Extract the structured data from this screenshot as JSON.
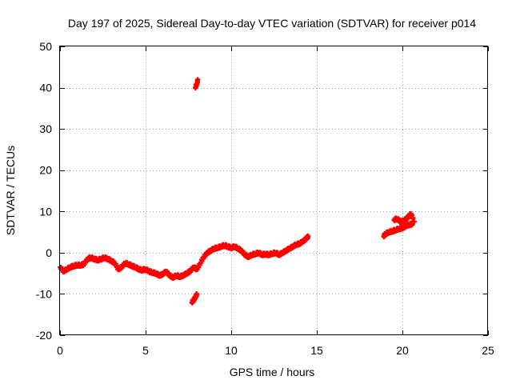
{
  "chart_data": {
    "type": "scatter",
    "title": "Day 197 of 2025, Sidereal Day-to-day VTEC variation (SDTVAR) for receiver p014",
    "xlabel": "GPS time / hours",
    "ylabel": "SDTVAR / TECUs",
    "xlim": [
      0,
      25
    ],
    "ylim": [
      -20,
      50
    ],
    "xticks": [
      0,
      5,
      10,
      15,
      20,
      25
    ],
    "yticks": [
      -20,
      -10,
      0,
      10,
      20,
      30,
      40,
      50
    ],
    "xtick_labels": [
      "0",
      "5",
      "10",
      "15",
      "20",
      "25"
    ],
    "ytick_labels": [
      "-20",
      "-10",
      "0",
      "10",
      "20",
      "30",
      "40",
      "50"
    ],
    "grid": true,
    "marker": "+",
    "marker_color": "#ff0000",
    "series": [
      {
        "x": [
          0.0,
          0.2,
          0.4,
          0.6,
          0.8,
          1.0,
          1.2,
          1.4,
          1.6,
          1.8,
          2.0,
          2.2,
          2.4,
          2.6,
          2.8,
          3.0,
          3.2,
          3.4,
          3.6,
          3.8,
          4.0,
          4.2,
          4.4,
          4.6,
          4.8,
          5.0,
          5.2,
          5.4,
          5.6,
          5.8,
          6.0,
          6.2,
          6.4,
          6.6,
          6.8,
          7.0,
          7.2,
          7.4,
          7.6,
          7.8,
          8.0,
          8.2,
          8.4,
          8.6,
          8.8,
          9.0,
          9.2,
          9.4,
          9.6,
          9.8,
          10.0,
          10.2,
          10.4,
          10.6,
          10.8,
          11.0,
          11.2,
          11.4,
          11.6,
          11.8,
          12.0,
          12.2,
          12.4,
          12.6,
          12.8,
          13.0,
          13.2,
          13.4,
          13.6,
          13.8,
          14.0,
          14.2,
          14.4,
          14.5
        ],
        "y": [
          -3.5,
          -4.5,
          -4.0,
          -3.5,
          -3.2,
          -3.0,
          -3.0,
          -2.8,
          -1.5,
          -1.2,
          -1.5,
          -1.8,
          -1.5,
          -1.2,
          -1.5,
          -2.0,
          -2.5,
          -4.0,
          -3.5,
          -2.5,
          -2.8,
          -3.2,
          -3.5,
          -4.0,
          -4.2,
          -4.0,
          -4.5,
          -4.8,
          -5.0,
          -5.5,
          -5.2,
          -4.5,
          -5.5,
          -6.0,
          -5.5,
          -5.8,
          -5.5,
          -5.0,
          -4.5,
          -3.5,
          -4.0,
          -2.5,
          -1.0,
          0.0,
          0.5,
          1.0,
          1.2,
          1.5,
          1.8,
          1.5,
          1.2,
          1.5,
          1.0,
          0.5,
          -0.5,
          -1.0,
          -0.5,
          -0.3,
          0.0,
          -0.5,
          -0.3,
          -0.5,
          -0.2,
          0.0,
          -0.5,
          0.0,
          0.5,
          1.0,
          1.5,
          2.0,
          2.2,
          2.8,
          3.5,
          4.0
        ]
      },
      {
        "x": [
          7.7,
          7.8,
          7.9,
          8.0
        ],
        "y": [
          -12.0,
          -11.5,
          -10.8,
          -10.0
        ]
      },
      {
        "x": [
          7.9,
          8.0,
          8.05
        ],
        "y": [
          40.0,
          41.0,
          42.0
        ]
      },
      {
        "x": [
          18.9,
          19.0,
          19.2,
          19.4,
          19.6,
          19.8,
          20.0,
          20.2,
          20.4,
          20.6,
          19.5,
          19.7,
          19.9,
          20.1,
          20.3,
          20.5,
          20.7
        ],
        "y": [
          4.0,
          4.5,
          5.0,
          5.2,
          5.5,
          5.8,
          6.0,
          6.5,
          6.8,
          7.0,
          8.0,
          8.2,
          7.5,
          7.8,
          8.5,
          9.5,
          7.5
        ]
      }
    ]
  }
}
